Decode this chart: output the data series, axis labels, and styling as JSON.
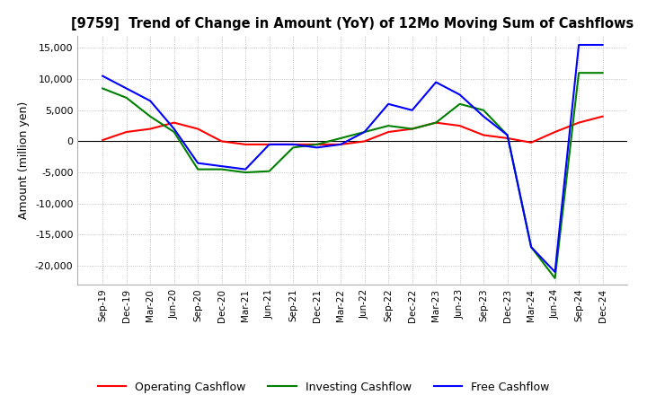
{
  "title": "[9759]  Trend of Change in Amount (YoY) of 12Mo Moving Sum of Cashflows",
  "ylabel": "Amount (million yen)",
  "xlabels": [
    "Sep-19",
    "Dec-19",
    "Mar-20",
    "Jun-20",
    "Sep-20",
    "Dec-20",
    "Mar-21",
    "Jun-21",
    "Sep-21",
    "Dec-21",
    "Mar-22",
    "Jun-22",
    "Sep-22",
    "Dec-22",
    "Mar-23",
    "Jun-23",
    "Sep-23",
    "Dec-23",
    "Mar-24",
    "Jun-24",
    "Sep-24",
    "Dec-24"
  ],
  "operating": [
    200,
    1500,
    2000,
    3000,
    2000,
    0,
    -500,
    -500,
    -500,
    -500,
    -500,
    0,
    1500,
    2000,
    3000,
    2500,
    1000,
    500,
    -200,
    1500,
    3000,
    4000
  ],
  "investing": [
    8500,
    7000,
    4000,
    1500,
    -4500,
    -4500,
    -5000,
    -4800,
    -1000,
    -500,
    500,
    1500,
    2500,
    2000,
    3000,
    6000,
    5000,
    1000,
    -17000,
    -22000,
    11000,
    11000
  ],
  "free": [
    10500,
    8500,
    6500,
    2000,
    -3500,
    -4000,
    -4500,
    -500,
    -500,
    -1000,
    -500,
    1500,
    6000,
    5000,
    9500,
    7500,
    4000,
    1000,
    -17000,
    -21000,
    15500,
    15500
  ],
  "ylim": [
    -23000,
    17000
  ],
  "yticks": [
    -20000,
    -15000,
    -10000,
    -5000,
    0,
    5000,
    10000,
    15000
  ],
  "operating_color": "#ff0000",
  "investing_color": "#008000",
  "free_color": "#0000ff",
  "background_color": "#ffffff",
  "grid_color": "#b0b0b0"
}
